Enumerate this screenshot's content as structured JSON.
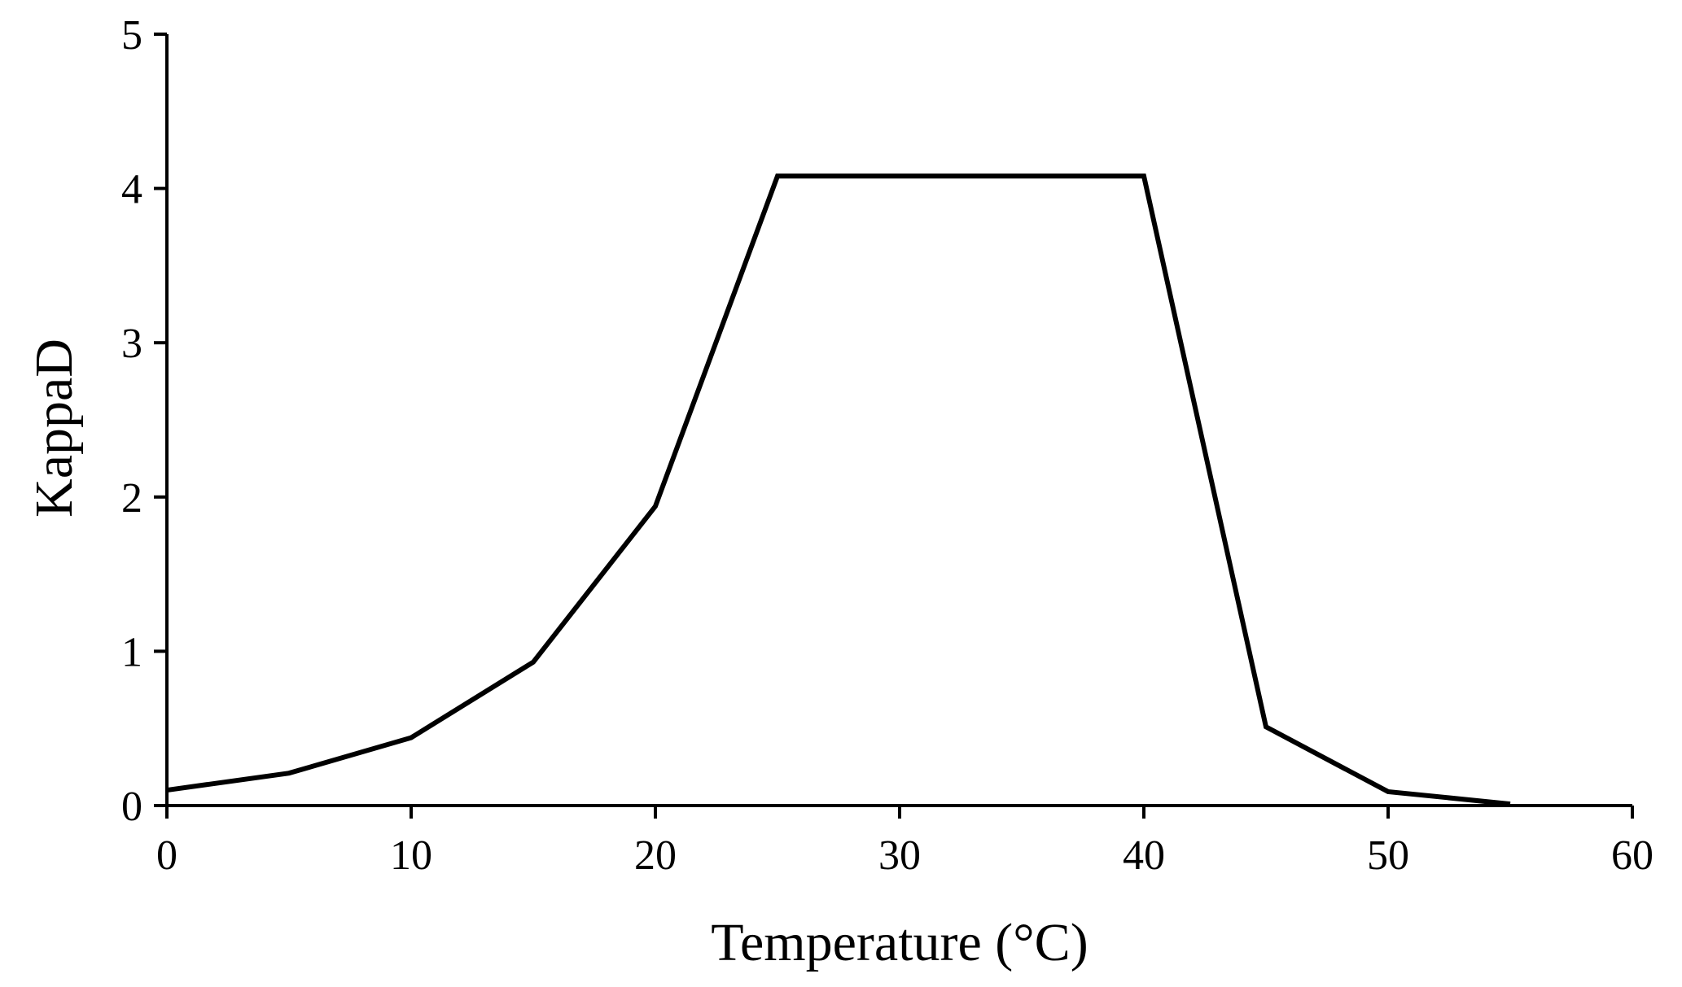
{
  "chart_data": {
    "type": "line",
    "title": "",
    "xlabel": "Temperature (°C)",
    "ylabel": "KappaD",
    "xlim": [
      0,
      60
    ],
    "ylim": [
      0,
      5
    ],
    "x_ticks": [
      0,
      10,
      20,
      30,
      40,
      50,
      60
    ],
    "y_ticks": [
      0,
      1,
      2,
      3,
      4,
      5
    ],
    "grid": false,
    "legend": "none",
    "line_color": "#000000",
    "series": [
      {
        "x": [
          0,
          5,
          10,
          15,
          20,
          25,
          40,
          45,
          50,
          55
        ],
        "y": [
          0.1,
          0.21,
          0.44,
          0.93,
          1.94,
          4.08,
          4.08,
          0.51,
          0.09,
          0.01
        ]
      }
    ]
  }
}
